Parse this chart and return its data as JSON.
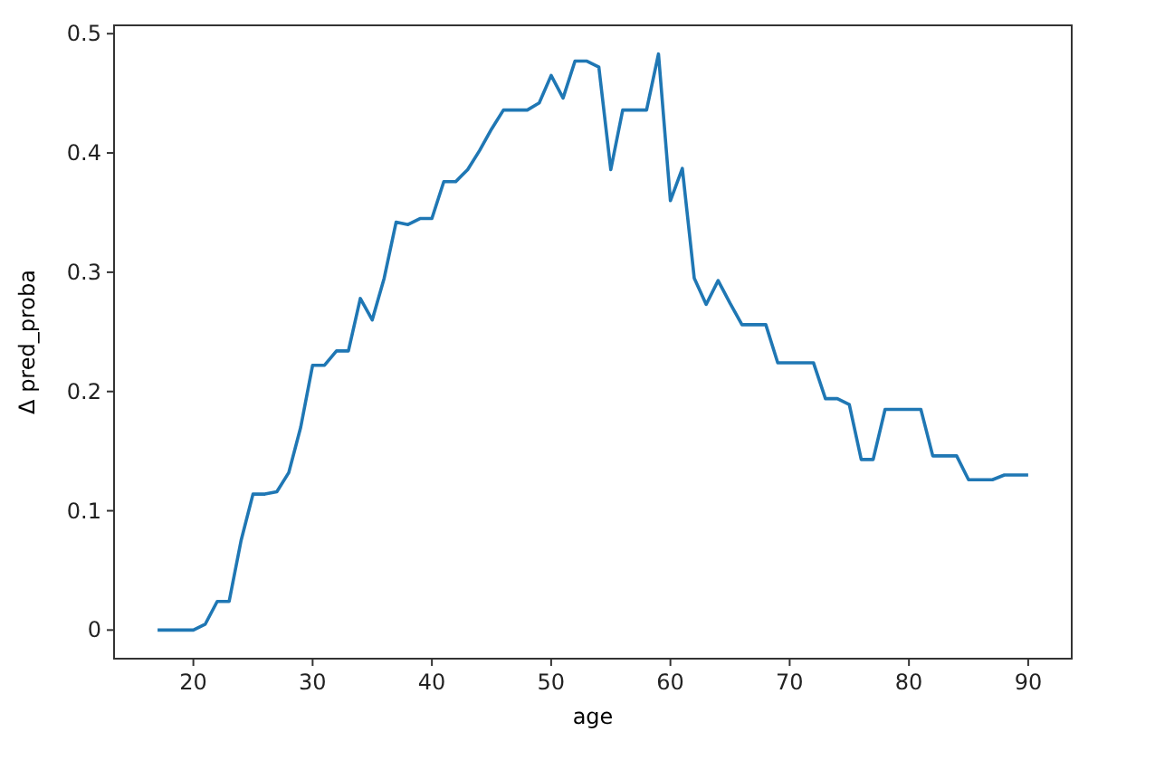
{
  "chart_data": {
    "type": "line",
    "xlabel": "age",
    "ylabel": "Δ pred_proba",
    "xlim": [
      13.35,
      93.65
    ],
    "ylim": [
      -0.024,
      0.507
    ],
    "xticks": [
      20,
      30,
      40,
      50,
      60,
      70,
      80,
      90
    ],
    "yticks": [
      0,
      0.1,
      0.2,
      0.3,
      0.4,
      0.5
    ],
    "x": [
      17,
      18,
      19,
      20,
      21,
      22,
      23,
      24,
      25,
      26,
      27,
      28,
      29,
      30,
      31,
      32,
      33,
      34,
      35,
      36,
      37,
      38,
      39,
      40,
      41,
      42,
      43,
      44,
      45,
      46,
      47,
      48,
      49,
      50,
      51,
      52,
      53,
      54,
      55,
      56,
      57,
      58,
      59,
      60,
      61,
      62,
      63,
      64,
      65,
      66,
      67,
      68,
      69,
      70,
      71,
      72,
      73,
      74,
      75,
      76,
      77,
      78,
      79,
      80,
      81,
      82,
      83,
      84,
      85,
      86,
      87,
      88,
      89,
      90
    ],
    "series": [
      {
        "color": "#1f77b4",
        "values": [
          0,
          0,
          0,
          0,
          0.005,
          0.024,
          0.024,
          0.075,
          0.114,
          0.114,
          0.116,
          0.132,
          0.17,
          0.222,
          0.222,
          0.234,
          0.234,
          0.278,
          0.26,
          0.295,
          0.342,
          0.34,
          0.345,
          0.345,
          0.376,
          0.376,
          0.386,
          0.402,
          0.42,
          0.436,
          0.436,
          0.436,
          0.442,
          0.465,
          0.446,
          0.477,
          0.477,
          0.472,
          0.386,
          0.436,
          0.436,
          0.436,
          0.483,
          0.36,
          0.387,
          0.295,
          0.273,
          0.293,
          0.274,
          0.256,
          0.256,
          0.256,
          0.224,
          0.224,
          0.224,
          0.224,
          0.194,
          0.194,
          0.189,
          0.143,
          0.143,
          0.185,
          0.185,
          0.185,
          0.185,
          0.146,
          0.146,
          0.146,
          0.126,
          0.126,
          0.126,
          0.13,
          0.13,
          0.13
        ]
      }
    ]
  }
}
